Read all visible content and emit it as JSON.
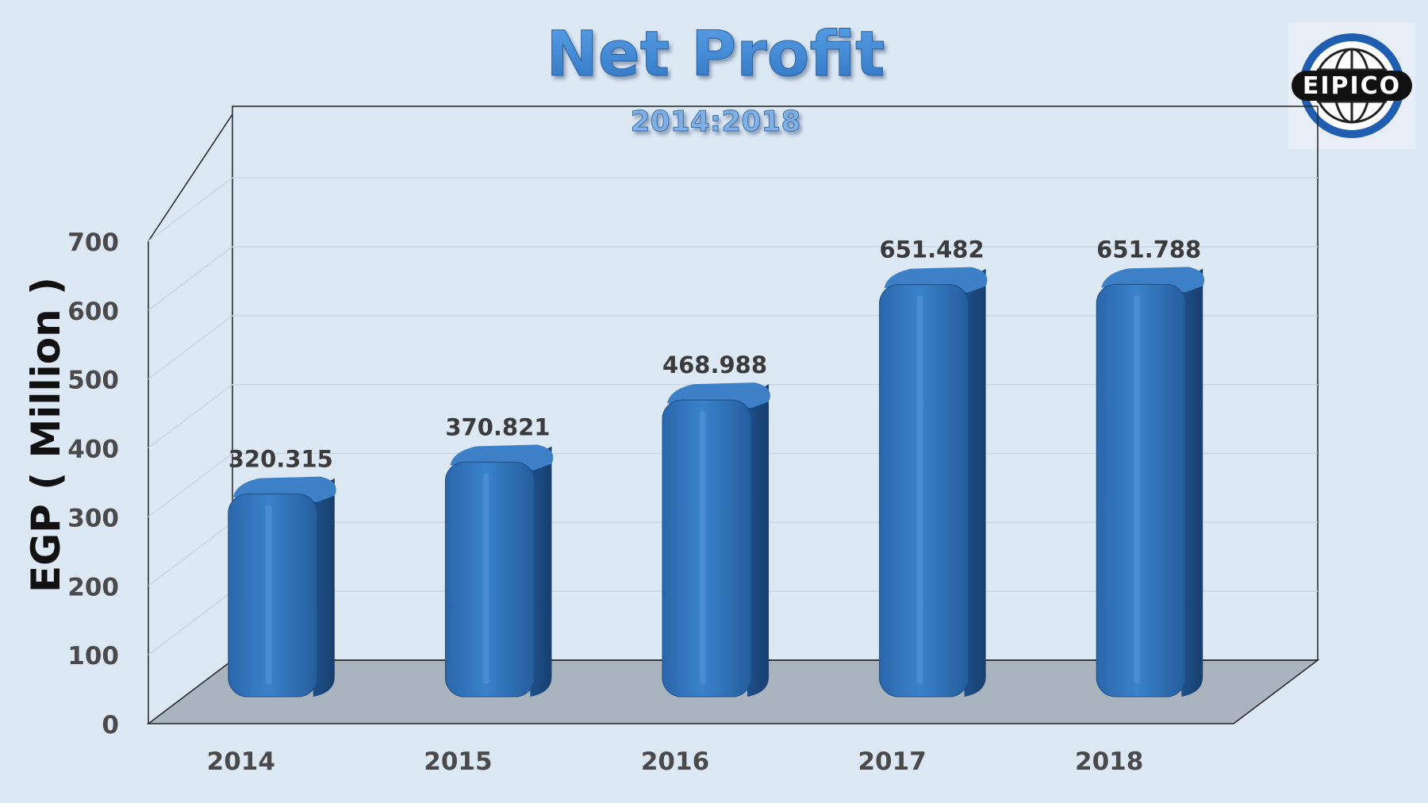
{
  "title": "Net Profit",
  "subtitle": "2014:2018",
  "logo": {
    "text": "EIPICO",
    "ring_color": "#1f5eb0",
    "icon": "globe-logo-icon"
  },
  "colors": {
    "background": "#dde8f5",
    "bar_front": "#2f72bb",
    "bar_side": "#1d4d84",
    "bar_top": "#4e8fd3",
    "floor": "#aab4bf",
    "title": "#3f86d2",
    "label": "#3b3b3b"
  },
  "chart_data": {
    "type": "bar",
    "title": "Net Profit",
    "subtitle": "2014:2018",
    "categories": [
      "2014",
      "2015",
      "2016",
      "2017",
      "2018"
    ],
    "values": [
      320.315,
      370.821,
      468.988,
      651.482,
      651.788
    ],
    "value_labels": [
      "320.315",
      "370.821",
      "468.988",
      "651.482",
      "651.788"
    ],
    "ylabel": "EGP ( Million )",
    "xlabel": "",
    "ylim": [
      0,
      700
    ],
    "yticks": [
      0,
      100,
      200,
      300,
      400,
      500,
      600,
      700
    ],
    "ytick_labels": [
      "0",
      "100",
      "200",
      "300",
      "400",
      "500",
      "600",
      "700"
    ],
    "grid": true,
    "style": "3d-cylinder-bars"
  }
}
